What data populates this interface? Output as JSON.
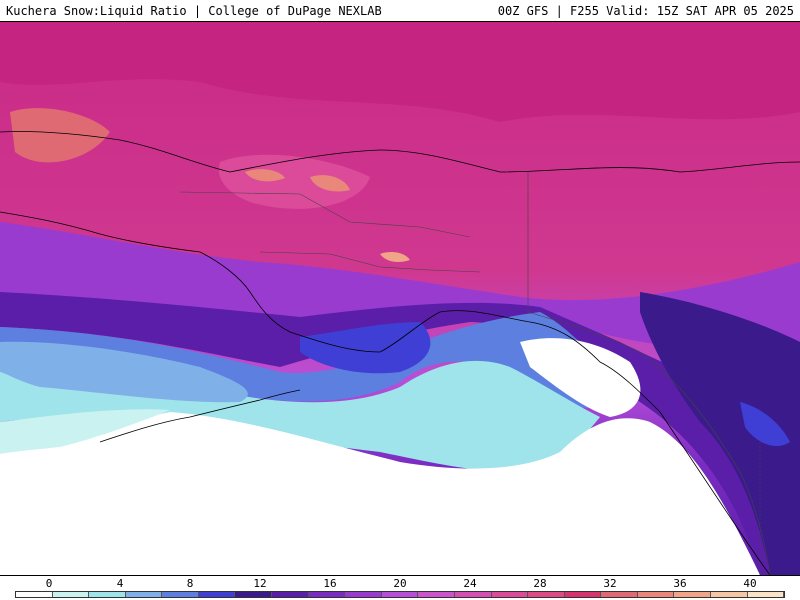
{
  "header": {
    "left_text": "Kuchera Snow:Liquid Ratio | College of DuPage NEXLAB",
    "right_text": "00Z GFS | F255 Valid: 15Z SAT APR 05 2025"
  },
  "legend": {
    "ticks": [
      "0",
      "4",
      "8",
      "12",
      "16",
      "20",
      "24",
      "28",
      "32",
      "36",
      "40"
    ],
    "colors": [
      "#ffffff",
      "#c9f2f0",
      "#9ee4ea",
      "#7fb0e8",
      "#5c7fe0",
      "#3f3fd6",
      "#3b1a8c",
      "#5a1ea8",
      "#7a2cc2",
      "#9a3bd0",
      "#b84fd8",
      "#cc55cc",
      "#d64fb4",
      "#dc4a9a",
      "#e04a84",
      "#d8336e",
      "#e06a74",
      "#e8877a",
      "#f0a488",
      "#f6c6a4",
      "#fbe3c8"
    ]
  },
  "map": {
    "description_layers": [
      "snow-liquid-ratio-shading",
      "coastlines",
      "borders"
    ]
  }
}
